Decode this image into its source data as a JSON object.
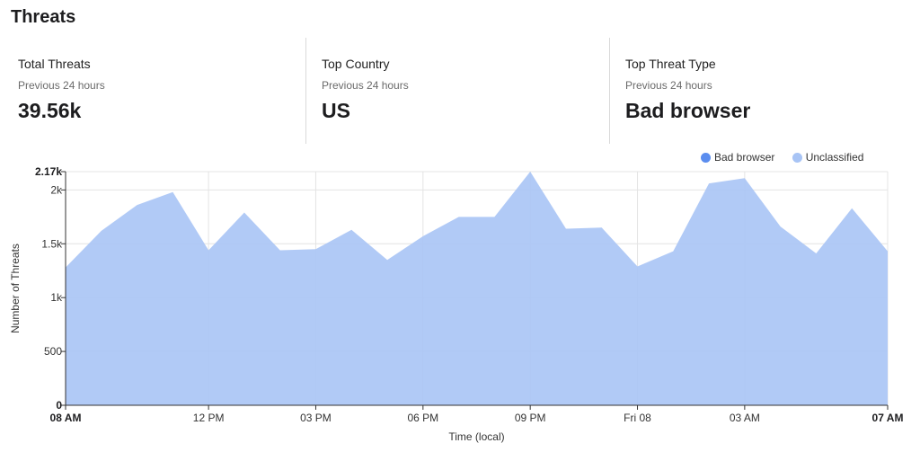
{
  "title": "Threats",
  "stats": [
    {
      "label": "Total Threats",
      "period": "Previous 24 hours",
      "value": "39.56k"
    },
    {
      "label": "Top Country",
      "period": "Previous 24 hours",
      "value": "US"
    },
    {
      "label": "Top Threat Type",
      "period": "Previous 24 hours",
      "value": "Bad browser"
    }
  ],
  "colors": {
    "bad_browser": "#5b8def",
    "unclassified": "#a8c4f5"
  },
  "chart_data": {
    "type": "area",
    "title": "",
    "xlabel": "Time (local)",
    "ylabel": "Number of Threats",
    "ylim": [
      0,
      2170
    ],
    "grid": true,
    "legend_position": "top-right",
    "y_ticks": [
      {
        "value": 0,
        "label": "0",
        "bold": true
      },
      {
        "value": 500,
        "label": "500"
      },
      {
        "value": 1000,
        "label": "1k"
      },
      {
        "value": 1500,
        "label": "1.5k"
      },
      {
        "value": 2000,
        "label": "2k"
      },
      {
        "value": 2170,
        "label": "2.17k",
        "bold": true
      }
    ],
    "x_ticks": [
      {
        "index": 0,
        "label": "08 AM",
        "bold": true
      },
      {
        "index": 4,
        "label": "12 PM"
      },
      {
        "index": 7,
        "label": "03 PM"
      },
      {
        "index": 10,
        "label": "06 PM"
      },
      {
        "index": 13,
        "label": "09 PM"
      },
      {
        "index": 16,
        "label": "Fri 08"
      },
      {
        "index": 19,
        "label": "03 AM"
      },
      {
        "index": 23,
        "label": "07 AM",
        "bold": true
      }
    ],
    "x": [
      "08 AM",
      "09 AM",
      "10 AM",
      "11 AM",
      "12 PM",
      "01 PM",
      "02 PM",
      "03 PM",
      "04 PM",
      "05 PM",
      "06 PM",
      "07 PM",
      "08 PM",
      "09 PM",
      "10 PM",
      "11 PM",
      "Fri 08",
      "01 AM",
      "02 AM",
      "03 AM",
      "04 AM",
      "05 AM",
      "06 AM",
      "07 AM"
    ],
    "series": [
      {
        "name": "Bad browser",
        "values": [
          0,
          0,
          0,
          0,
          0,
          0,
          0,
          0,
          0,
          0,
          0,
          0,
          0,
          0,
          0,
          0,
          0,
          0,
          0,
          0,
          0,
          0,
          0,
          0
        ]
      },
      {
        "name": "Unclassified",
        "values": [
          1280,
          1620,
          1860,
          1980,
          1440,
          1790,
          1440,
          1450,
          1630,
          1350,
          1570,
          1750,
          1750,
          2170,
          1640,
          1650,
          1290,
          1430,
          2060,
          2110,
          1660,
          1410,
          1830,
          1430
        ]
      }
    ]
  }
}
